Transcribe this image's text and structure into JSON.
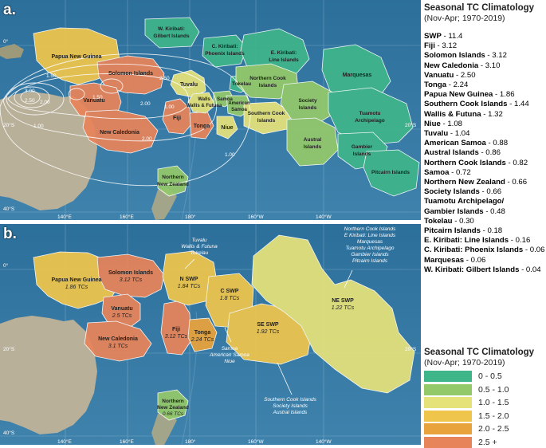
{
  "panel_a": {
    "letter": "a.",
    "regions": {
      "png": "Papua New Guinea",
      "solomon": "Solomon Islands",
      "vanuatu": "Vanuatu",
      "newcal": "New Caledonia",
      "fiji": "Fiji",
      "tonga": "Tonga",
      "tuvalu": "Tuvalu",
      "wallis": "Wallis & Futuna",
      "samoa": "Samoa",
      "amsamoa_1": "American",
      "amsamoa_2": "Samoa",
      "niue": "Niue",
      "tokelau": "Tokelau",
      "wkiri_1": "W. Kiribati:",
      "wkiri_2": "Gilbert Islands",
      "ckiri_1": "C. Kiribati:",
      "ckiri_2": "Phoenix Islands",
      "ekiri_1": "E. Kiribati:",
      "ekiri_2": "Line Islands",
      "ncook_1": "Northern Cook",
      "ncook_2": "Islands",
      "scook_1": "Southern Cook",
      "scook_2": "Islands",
      "society_1": "Society",
      "society_2": "Islands",
      "austral_1": "Austral",
      "austral_2": "Islands",
      "marquesas": "Marquesas",
      "tuamotu_1": "Tuamotu",
      "tuamotu_2": "Archipelago",
      "gambier_1": "Gambier",
      "gambier_2": "Islands",
      "pitcairn": "Pitcairn Islands",
      "nz_1": "Northern",
      "nz_2": "New Zealand"
    },
    "contours": [
      "3.00",
      "2.50",
      "2.00",
      "2.00",
      "1.50",
      "1.50",
      "1.50",
      "1.00",
      "1.00",
      "2.50",
      "2.00",
      "1.00"
    ],
    "lat_labels": [
      "0°",
      "20°S",
      "20°S",
      "40°S"
    ],
    "lon_labels": [
      "140°E",
      "160°E",
      "180°",
      "160°W",
      "140°W"
    ]
  },
  "panel_b": {
    "letter": "b.",
    "regions": [
      {
        "name": "Papua New Guinea",
        "value": "1.86 TCs"
      },
      {
        "name": "Solomon Islands",
        "value": "3.12 TCs"
      },
      {
        "name": "Vanuatu",
        "value": "2.5 TCs"
      },
      {
        "name": "New Caledonia",
        "value": "3.1 TCs"
      },
      {
        "name": "Fiji",
        "value": "3.12 TCs"
      },
      {
        "name": "Tonga",
        "value": "2.24 TCs"
      },
      {
        "name": "N SWP",
        "value": "1.84 TCs"
      },
      {
        "name": "C SWP",
        "value": "1.8 TCs"
      },
      {
        "name": "SE SWP",
        "value": "1.92 TCs"
      },
      {
        "name": "NE SWP",
        "value": "1.22 TCs"
      },
      {
        "name": "Northern",
        "value": "0.66 TCs",
        "name2": "New Zealand"
      }
    ],
    "callouts": {
      "n_swp": [
        "Tuvalu",
        "Wallis & Futuna",
        "Tokelau"
      ],
      "c_swp": [
        "Samoa",
        "American Samoa",
        "Niue"
      ],
      "se_swp": [
        "Southern Cook Islands",
        "Society Islands",
        "Austral Islands"
      ],
      "ne_swp": [
        "Northern Cook Islands",
        "E Kiribati: Line Islands",
        "Marquesas",
        "Tuamotu Archipelago",
        "Gambier Islands",
        "Pitcairn Islands"
      ]
    },
    "lat_labels": [
      "0°",
      "20°S",
      "20°S",
      "40°S"
    ],
    "lon_labels": [
      "140°E",
      "160°E",
      "180°",
      "160°W",
      "140°W"
    ]
  },
  "top_legend": {
    "title": "Seasonal TC Climatology",
    "subtitle": "(Nov-Apr; 1970-2019)",
    "items": [
      {
        "name": "SWP",
        "value": " - 11.4"
      },
      {
        "name": "Fiji",
        "value": " - 3.12"
      },
      {
        "name": "Solomon Islands",
        "value": " - 3.12"
      },
      {
        "name": "New Caledonia",
        "value": " - 3.10"
      },
      {
        "name": "Vanuatu",
        "value": " - 2.50"
      },
      {
        "name": "Tonga",
        "value": " - 2.24"
      },
      {
        "name": "Papua New Guinea",
        "value": " - 1.86"
      },
      {
        "name": "Southern Cook Islands",
        "value": " - 1.44"
      },
      {
        "name": "Wallis & Futuna",
        "value": " - 1.32"
      },
      {
        "name": "Niue",
        "value": " - 1.08"
      },
      {
        "name": "Tuvalu",
        "value": " - 1.04"
      },
      {
        "name": "American Samoa",
        "value": " - 0.88"
      },
      {
        "name": "Austral Islands",
        "value": " - 0.86"
      },
      {
        "name": "Northern Cook Islands",
        "value": " - 0.82"
      },
      {
        "name": "Samoa",
        "value": " - 0.72"
      },
      {
        "name": "Northern New Zealand",
        "value": " - 0.66"
      },
      {
        "name": "Society Islands",
        "value": " - 0.66"
      },
      {
        "name": "Tuamotu Archipelago/",
        "value": ""
      },
      {
        "name": "Gambier Islands",
        "value": " - 0.48"
      },
      {
        "name": "Tokelau",
        "value": " - 0.30"
      },
      {
        "name": "Pitcairn Islands",
        "value": " - 0.18"
      },
      {
        "name": "E. Kiribati: Line Islands",
        "value": " - 0.16"
      },
      {
        "name": "C. Kiribati: Phoenix Islands",
        "value": " - 0.06"
      },
      {
        "name": "Marquesas",
        "value": " - 0.06"
      },
      {
        "name": "W. Kiribati: Gilbert Islands",
        "value": " - 0.04"
      }
    ]
  },
  "color_legend": {
    "title": "Seasonal TC Climatology",
    "subtitle": "(Nov-Apr; 1970-2019)",
    "bins": [
      {
        "label": "0 - 0.5",
        "color": "#3fb58a"
      },
      {
        "label": "0.5 - 1.0",
        "color": "#94c96a"
      },
      {
        "label": "1.0 - 1.5",
        "color": "#e5e27a"
      },
      {
        "label": "1.5 - 2.0",
        "color": "#efc54c"
      },
      {
        "label": "2.0 - 2.5",
        "color": "#e9a33c"
      },
      {
        "label": "2.5 +",
        "color": "#e8845a"
      }
    ]
  }
}
